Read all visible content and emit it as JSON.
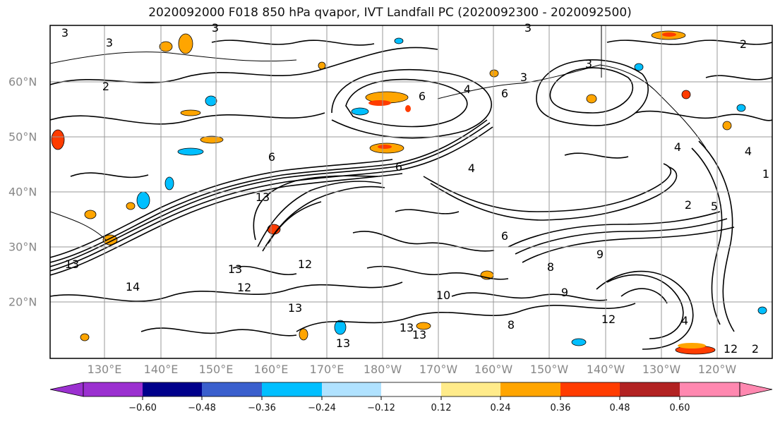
{
  "title": "2020092000 F018 850 hPa qvapor, IVT Landfall PC (2020092300 - 2020092500)",
  "lon_labels": [
    "130°E",
    "140°E",
    "150°E",
    "160°E",
    "170°E",
    "180°W",
    "170°W",
    "160°W",
    "150°W",
    "140°W",
    "130°W",
    "120°W"
  ],
  "lat_labels": [
    "60°N",
    "50°N",
    "40°N",
    "30°N",
    "20°N"
  ],
  "colorbar": {
    "tick_labels": [
      "−0.60",
      "−0.48",
      "−0.36",
      "−0.24",
      "−0.12",
      "0.12",
      "0.24",
      "0.36",
      "0.48",
      "0.60"
    ],
    "colors": [
      "#9b30d0",
      "#00008b",
      "#3a5fcd",
      "#00bfff",
      "#b0e2ff",
      "#ffffff",
      "#ffeb8a",
      "#ffa500",
      "#ff3c00",
      "#b22222",
      "#ff88b0"
    ]
  },
  "contour_labels": [
    "3",
    "3",
    "3",
    "3",
    "2",
    "6",
    "4",
    "6",
    "3",
    "3",
    "2",
    "6",
    "4",
    "13",
    "6",
    "13",
    "12",
    "13",
    "12",
    "14",
    "13",
    "13",
    "10",
    "6",
    "9",
    "8",
    "12",
    "4",
    "8",
    "9",
    "4",
    "2",
    "5",
    "4",
    "1",
    "13",
    "12",
    "2",
    "13"
  ]
}
